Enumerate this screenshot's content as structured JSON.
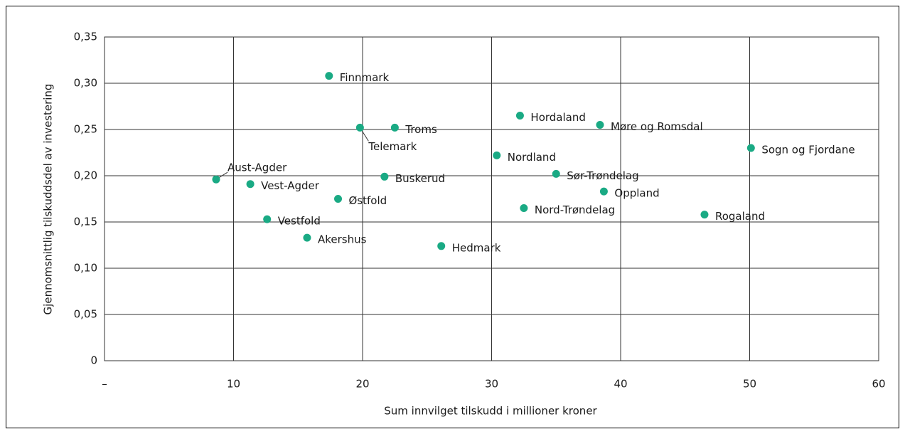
{
  "chart_data": {
    "type": "scatter",
    "xlabel": "Sum innvilget tilskudd i millioner kroner",
    "ylabel": "Gjennomsnittlig tilskuddsdel av investering",
    "color": "#1aaa84",
    "grid": true,
    "labels": [
      "Aust-Agder",
      "Vest-Agder",
      "Vestfold",
      "Akershus",
      "Østfold",
      "Finnmark",
      "Telemark",
      "Troms",
      "Buskerud",
      "Hedmark",
      "Nordland",
      "Hordaland",
      "Nord-Trøndelag",
      "Sør-Trøndelag",
      "Møre og Romsdal",
      "Oppland",
      "Rogaland",
      "Sogn og Fjordane"
    ],
    "x": [
      8.65,
      11.3,
      12.6,
      15.7,
      18.1,
      17.4,
      19.8,
      22.5,
      21.7,
      26.1,
      30.4,
      32.2,
      32.5,
      35.0,
      38.4,
      38.7,
      46.5,
      50.1
    ],
    "values": [
      0.196,
      0.191,
      0.153,
      0.133,
      0.175,
      0.308,
      0.252,
      0.252,
      0.199,
      0.124,
      0.222,
      0.265,
      0.165,
      0.202,
      0.255,
      0.183,
      0.158,
      0.23
    ],
    "xlim": [
      0,
      60
    ],
    "xticks": [
      {
        "value": 0,
        "label": "–"
      },
      10,
      20,
      30,
      40,
      50,
      60
    ],
    "ylim": [
      0,
      0.35
    ],
    "yticks": [
      0,
      {
        "value": 0.05,
        "label": "0,05"
      },
      {
        "value": 0.1,
        "label": "0,10"
      },
      {
        "value": 0.15,
        "label": "0,15"
      },
      {
        "value": 0.2,
        "label": "0,20"
      },
      {
        "value": 0.25,
        "label": "0,25"
      },
      {
        "value": 0.3,
        "label": "0,30"
      },
      {
        "value": 0.35,
        "label": "0,35"
      }
    ]
  }
}
